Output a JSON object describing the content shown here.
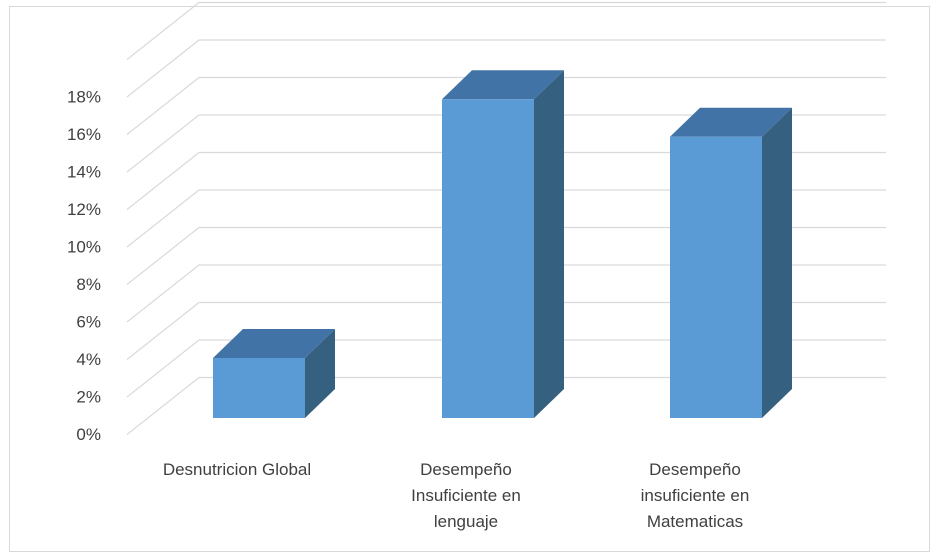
{
  "chart_data": {
    "type": "bar",
    "categories": [
      [
        "Desnutricion Global"
      ],
      [
        "Desempeño",
        "Insuficiente en",
        "lenguaje"
      ],
      [
        "Desempeño",
        "insuficiente en",
        "Matematicas"
      ]
    ],
    "values": [
      0.032,
      0.17,
      0.15
    ],
    "ylim": [
      0,
      0.18
    ],
    "yticks": [
      "0%",
      "2%",
      "4%",
      "6%",
      "8%",
      "10%",
      "12%",
      "14%",
      "16%",
      "18%"
    ],
    "grid": true,
    "colors": {
      "front": "#5b9bd5",
      "top": "#4273a6",
      "side": "#35607f",
      "grid": "#d9d9d9"
    }
  }
}
